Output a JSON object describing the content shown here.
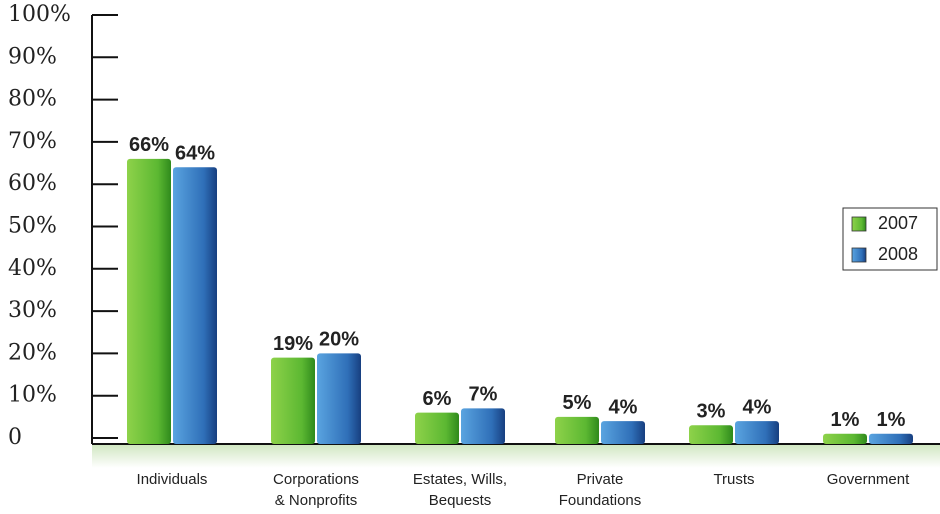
{
  "chart_data": {
    "type": "bar",
    "categories": [
      [
        "Individuals"
      ],
      [
        "Corporations",
        "& Nonprofits"
      ],
      [
        "Estates, Wills,",
        "Bequests"
      ],
      [
        "Private",
        "Foundations"
      ],
      [
        "Trusts"
      ],
      [
        "Government"
      ]
    ],
    "series": [
      {
        "name": "2007",
        "color": "#6cc03a",
        "values": [
          66,
          19,
          6,
          5,
          3,
          1
        ],
        "value_labels": [
          "66%",
          "19%",
          "6%",
          "5%",
          "3%",
          "1%"
        ]
      },
      {
        "name": "2008",
        "color": "#3a7fc8",
        "values": [
          64,
          20,
          7,
          4,
          4,
          1
        ],
        "value_labels": [
          "64%",
          "20%",
          "7%",
          "4%",
          "4%",
          "1%"
        ]
      }
    ],
    "ylim": [
      0,
      100
    ],
    "yticks": [
      0,
      {
        "value": 10,
        "label": "10%"
      },
      {
        "value": 20,
        "label": "20%"
      },
      {
        "value": 30,
        "label": "30%"
      },
      {
        "value": 40,
        "label": "40%"
      },
      {
        "value": 50,
        "label": "50%"
      },
      {
        "value": 60,
        "label": "60%"
      },
      {
        "value": 70,
        "label": "70%"
      },
      {
        "value": 80,
        "label": "80%"
      },
      {
        "value": 90,
        "label": "90%"
      },
      {
        "value": 100,
        "label": "100%"
      }
    ],
    "legend": "right"
  }
}
